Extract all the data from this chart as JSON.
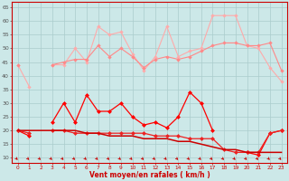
{
  "x": [
    0,
    1,
    2,
    3,
    4,
    5,
    6,
    7,
    8,
    9,
    10,
    11,
    12,
    13,
    14,
    15,
    16,
    17,
    18,
    19,
    20,
    21,
    22,
    23
  ],
  "line1_rafales_top": [
    44,
    36,
    null,
    44,
    44,
    50,
    45,
    58,
    55,
    56,
    48,
    42,
    47,
    58,
    47,
    49,
    50,
    62,
    62,
    62,
    51,
    50,
    43,
    38
  ],
  "line2_moyen_top": [
    44,
    null,
    null,
    44,
    45,
    46,
    46,
    51,
    47,
    50,
    47,
    43,
    46,
    47,
    46,
    47,
    49,
    51,
    52,
    52,
    51,
    51,
    52,
    42
  ],
  "line3_rafales_bot": [
    20,
    18,
    null,
    23,
    30,
    23,
    33,
    27,
    27,
    30,
    25,
    22,
    23,
    21,
    25,
    34,
    30,
    20,
    null,
    null,
    12,
    11,
    19,
    20
  ],
  "line4_moyen_bot": [
    20,
    19,
    null,
    20,
    20,
    19,
    19,
    19,
    19,
    19,
    19,
    19,
    18,
    18,
    18,
    17,
    17,
    17,
    13,
    12,
    12,
    12,
    19,
    20
  ],
  "line5_trend": [
    20,
    20,
    20,
    20,
    20,
    20,
    19,
    19,
    18,
    18,
    18,
    17,
    17,
    17,
    16,
    16,
    15,
    14,
    13,
    13,
    12,
    12,
    12,
    12
  ],
  "bg_color": "#cce8e8",
  "grid_color": "#aacccc",
  "color_light_pink": "#ffaaaa",
  "color_pink": "#ff8888",
  "color_red_bold": "#ff0000",
  "color_red_med": "#ee2222",
  "color_dark_red": "#cc0000",
  "xlabel": "Vent moyen/en rafales ( km/h )",
  "ylim": [
    8,
    67
  ],
  "yticks": [
    10,
    15,
    20,
    25,
    30,
    35,
    40,
    45,
    50,
    55,
    60,
    65
  ],
  "xticks": [
    0,
    1,
    2,
    3,
    4,
    5,
    6,
    7,
    8,
    9,
    10,
    11,
    12,
    13,
    14,
    15,
    16,
    17,
    18,
    19,
    20,
    21,
    22,
    23
  ]
}
